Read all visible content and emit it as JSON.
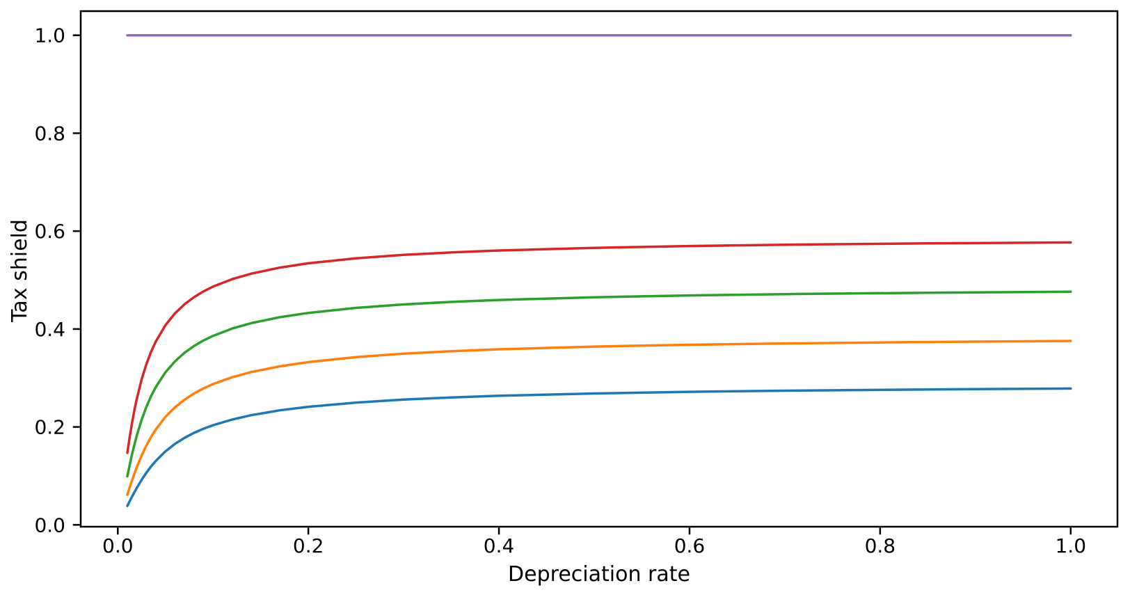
{
  "chart_data": {
    "type": "line",
    "title": "",
    "xlabel": "Depreciation rate",
    "ylabel": "Tax shield",
    "xlim": [
      -0.0389,
      1.0491
    ],
    "ylim": [
      -0.0038,
      1.0493
    ],
    "grid": false,
    "legend_position": "none",
    "background_color": "#ffffff",
    "spine_color": "#000000",
    "x_ticks": {
      "values": [
        0.0,
        0.2,
        0.4,
        0.6,
        0.8,
        1.0
      ],
      "labels": [
        "0.0",
        "0.2",
        "0.4",
        "0.6",
        "0.8",
        "1.0"
      ]
    },
    "y_ticks": {
      "values": [
        0.0,
        0.2,
        0.4,
        0.6,
        0.8,
        1.0
      ],
      "labels": [
        "0.0",
        "0.2",
        "0.4",
        "0.6",
        "0.8",
        "1.0"
      ]
    },
    "series": [
      {
        "name": "series-blue",
        "color": "#1f77b4",
        "points": [
          [
            0.01,
            0.0387
          ],
          [
            0.0125,
            0.0483
          ],
          [
            0.015,
            0.0577
          ],
          [
            0.0175,
            0.0668
          ],
          [
            0.02,
            0.0756
          ],
          [
            0.025,
            0.0919
          ],
          [
            0.03,
            0.1065
          ],
          [
            0.035,
            0.1194
          ],
          [
            0.04,
            0.1309
          ],
          [
            0.05,
            0.1501
          ],
          [
            0.06,
            0.1653
          ],
          [
            0.07,
            0.1777
          ],
          [
            0.08,
            0.1879
          ],
          [
            0.09,
            0.1964
          ],
          [
            0.1,
            0.2036
          ],
          [
            0.12,
            0.2151
          ],
          [
            0.14,
            0.224
          ],
          [
            0.17,
            0.2339
          ],
          [
            0.2,
            0.2412
          ],
          [
            0.25,
            0.2498
          ],
          [
            0.3,
            0.2558
          ],
          [
            0.35,
            0.2602
          ],
          [
            0.4,
            0.2636
          ],
          [
            0.5,
            0.2684
          ],
          [
            0.6,
            0.2717
          ],
          [
            0.7,
            0.2741
          ],
          [
            0.85,
            0.2766
          ],
          [
            1.0,
            0.2784
          ]
        ]
      },
      {
        "name": "series-orange",
        "color": "#ff7f0e",
        "points": [
          [
            0.01,
            0.0614
          ],
          [
            0.0125,
            0.0764
          ],
          [
            0.015,
            0.0909
          ],
          [
            0.0175,
            0.1047
          ],
          [
            0.02,
            0.1178
          ],
          [
            0.025,
            0.1415
          ],
          [
            0.03,
            0.162
          ],
          [
            0.035,
            0.1798
          ],
          [
            0.04,
            0.1952
          ],
          [
            0.05,
            0.2204
          ],
          [
            0.06,
            0.24
          ],
          [
            0.07,
            0.2556
          ],
          [
            0.08,
            0.2683
          ],
          [
            0.09,
            0.2788
          ],
          [
            0.1,
            0.2875
          ],
          [
            0.12,
            0.3015
          ],
          [
            0.14,
            0.3121
          ],
          [
            0.17,
            0.3238
          ],
          [
            0.2,
            0.3325
          ],
          [
            0.25,
            0.3426
          ],
          [
            0.3,
            0.3496
          ],
          [
            0.35,
            0.3547
          ],
          [
            0.4,
            0.3586
          ],
          [
            0.5,
            0.3641
          ],
          [
            0.6,
            0.3679
          ],
          [
            0.7,
            0.3706
          ],
          [
            0.85,
            0.3735
          ],
          [
            1.0,
            0.3756
          ]
        ]
      },
      {
        "name": "series-green",
        "color": "#2ca02c",
        "points": [
          [
            0.01,
            0.0992
          ],
          [
            0.0125,
            0.1225
          ],
          [
            0.015,
            0.1442
          ],
          [
            0.0175,
            0.1642
          ],
          [
            0.02,
            0.1826
          ],
          [
            0.025,
            0.2145
          ],
          [
            0.03,
            0.241
          ],
          [
            0.035,
            0.2632
          ],
          [
            0.04,
            0.2819
          ],
          [
            0.05,
            0.3116
          ],
          [
            0.06,
            0.3339
          ],
          [
            0.07,
            0.3514
          ],
          [
            0.08,
            0.3653
          ],
          [
            0.09,
            0.3766
          ],
          [
            0.1,
            0.3861
          ],
          [
            0.12,
            0.4009
          ],
          [
            0.14,
            0.412
          ],
          [
            0.17,
            0.4241
          ],
          [
            0.2,
            0.4329
          ],
          [
            0.25,
            0.4432
          ],
          [
            0.3,
            0.4503
          ],
          [
            0.35,
            0.4554
          ],
          [
            0.4,
            0.4593
          ],
          [
            0.5,
            0.4649
          ],
          [
            0.6,
            0.4686
          ],
          [
            0.7,
            0.4713
          ],
          [
            0.85,
            0.4741
          ],
          [
            1.0,
            0.4762
          ]
        ]
      },
      {
        "name": "series-red",
        "color": "#d62728",
        "points": [
          [
            0.01,
            0.147
          ],
          [
            0.0125,
            0.1794
          ],
          [
            0.015,
            0.2085
          ],
          [
            0.0175,
            0.2346
          ],
          [
            0.02,
            0.2578
          ],
          [
            0.025,
            0.2969
          ],
          [
            0.03,
            0.3283
          ],
          [
            0.035,
            0.3538
          ],
          [
            0.04,
            0.3749
          ],
          [
            0.05,
            0.4077
          ],
          [
            0.06,
            0.4319
          ],
          [
            0.07,
            0.4504
          ],
          [
            0.08,
            0.465
          ],
          [
            0.09,
            0.4769
          ],
          [
            0.1,
            0.4867
          ],
          [
            0.12,
            0.5018
          ],
          [
            0.14,
            0.5131
          ],
          [
            0.17,
            0.5254
          ],
          [
            0.2,
            0.5342
          ],
          [
            0.25,
            0.5445
          ],
          [
            0.3,
            0.5515
          ],
          [
            0.35,
            0.5565
          ],
          [
            0.4,
            0.5604
          ],
          [
            0.5,
            0.5658
          ],
          [
            0.6,
            0.5695
          ],
          [
            0.7,
            0.5722
          ],
          [
            0.85,
            0.5749
          ],
          [
            1.0,
            0.5769
          ]
        ]
      },
      {
        "name": "series-purple",
        "color": "#9467bd",
        "points": [
          [
            0.01,
            1.0
          ],
          [
            1.0,
            1.0
          ]
        ]
      }
    ]
  }
}
